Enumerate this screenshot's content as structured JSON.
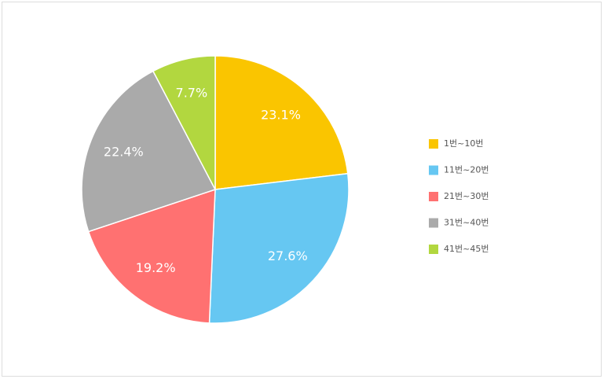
{
  "chart_data": {
    "type": "pie",
    "categories": [
      "1번~10번",
      "11번~20번",
      "21번~30번",
      "31번~40번",
      "41번~45번"
    ],
    "values": [
      23.1,
      27.6,
      19.2,
      22.4,
      7.7
    ],
    "value_labels": [
      "23.1%",
      "27.6%",
      "19.2%",
      "22.4%",
      "7.7%"
    ],
    "colors": [
      "#fac500",
      "#66c7f2",
      "#ff7171",
      "#aaaaaa",
      "#b2d73f"
    ],
    "legend": "right"
  }
}
